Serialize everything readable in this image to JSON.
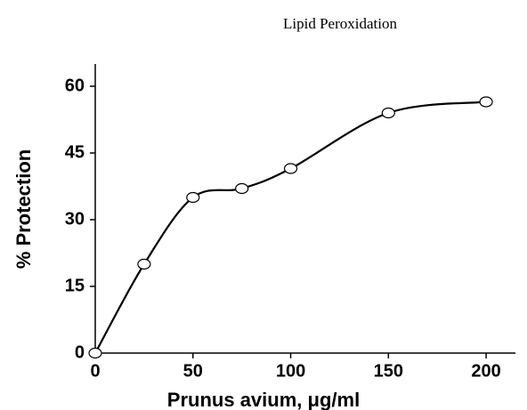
{
  "chart_data": {
    "type": "scatter",
    "title": "Lipid Peroxidation",
    "xlabel": "Prunus avium, μg/ml",
    "ylabel": "% Protection",
    "x": [
      0,
      25,
      50,
      75,
      100,
      150,
      200
    ],
    "series": [
      {
        "color": "#000000",
        "values": [
          0,
          20,
          35,
          37,
          41.5,
          54,
          56.5
        ]
      }
    ],
    "xlim": [
      0,
      215
    ],
    "xticks": [
      0,
      50,
      100,
      150,
      200
    ],
    "ylim": [
      0,
      65
    ],
    "yticks": [
      0,
      15,
      30,
      45,
      60
    ],
    "grid": false
  }
}
